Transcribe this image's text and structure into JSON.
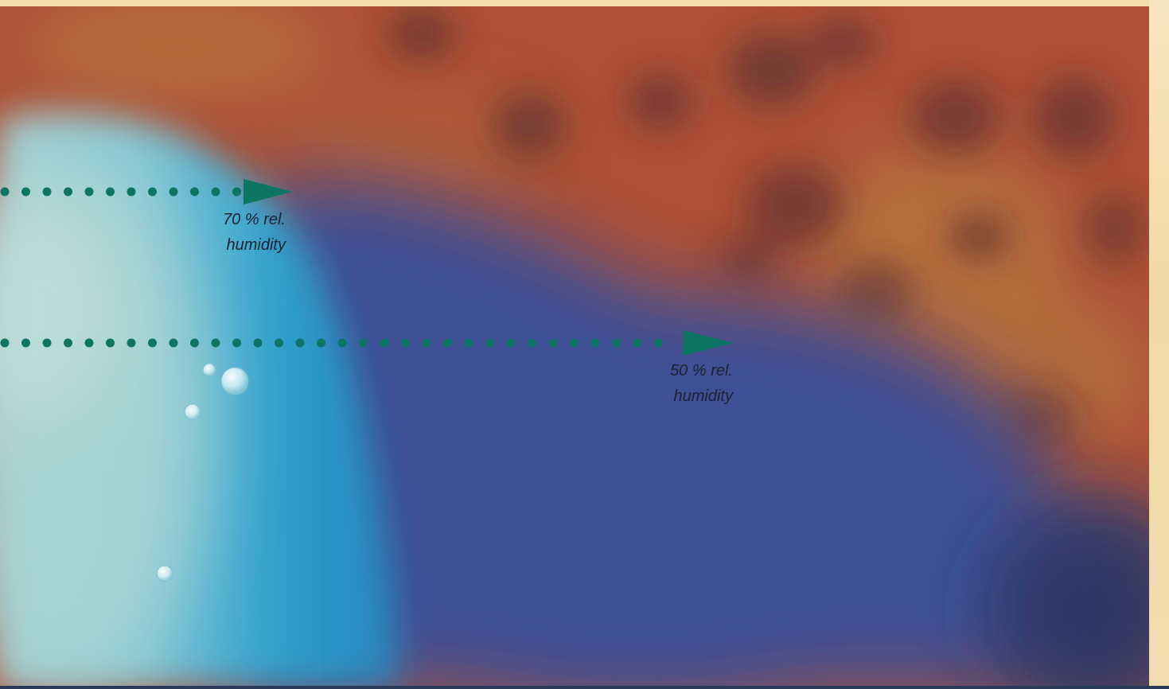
{
  "colors": {
    "frame": "#f2ddb0",
    "arrow": "#0e7565",
    "deep_blue": "#33479a",
    "light_cyan": "#9fd9e0",
    "cyan": "#27a6d8",
    "rust": "#b5492d",
    "ochre": "#c08a3a",
    "dark_spot": "#5a2a22"
  },
  "arrows": [
    {
      "id": "arrow-70",
      "label_line1": "70 % rel.",
      "label_line2": "humidity"
    },
    {
      "id": "arrow-50",
      "label_line1": "50 % rel.",
      "label_line2": "humidity"
    }
  ]
}
